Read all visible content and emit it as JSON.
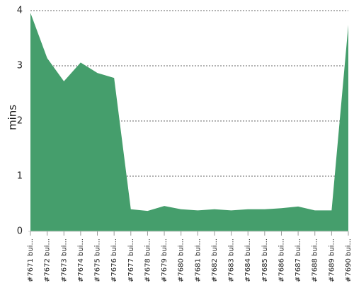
{
  "chart_data": {
    "type": "area",
    "y_label": "mins",
    "categories": [
      "#7671 bui...",
      "#7672 bui...",
      "#7673 bui...",
      "#7674 bui...",
      "#7675 bui...",
      "#7676 bui...",
      "#7677 bui...",
      "#7678 bui...",
      "#7679 bui...",
      "#7680 bui...",
      "#7681 bui...",
      "#7682 bui...",
      "#7683 bui...",
      "#7684 bui...",
      "#7685 bui...",
      "#7686 bui...",
      "#7687 bui...",
      "#7688 bui...",
      "#7689 bui...",
      "#7690 bui..."
    ],
    "values": [
      3.96,
      3.14,
      2.72,
      3.06,
      2.87,
      2.78,
      0.4,
      0.37,
      0.46,
      0.4,
      0.38,
      0.4,
      0.38,
      0.4,
      0.4,
      0.42,
      0.45,
      0.38,
      0.38,
      3.74
    ],
    "color": "#459e6c",
    "ylim": [
      0,
      4
    ],
    "yticks": [
      0,
      1,
      2,
      3,
      4
    ],
    "grid": true
  }
}
